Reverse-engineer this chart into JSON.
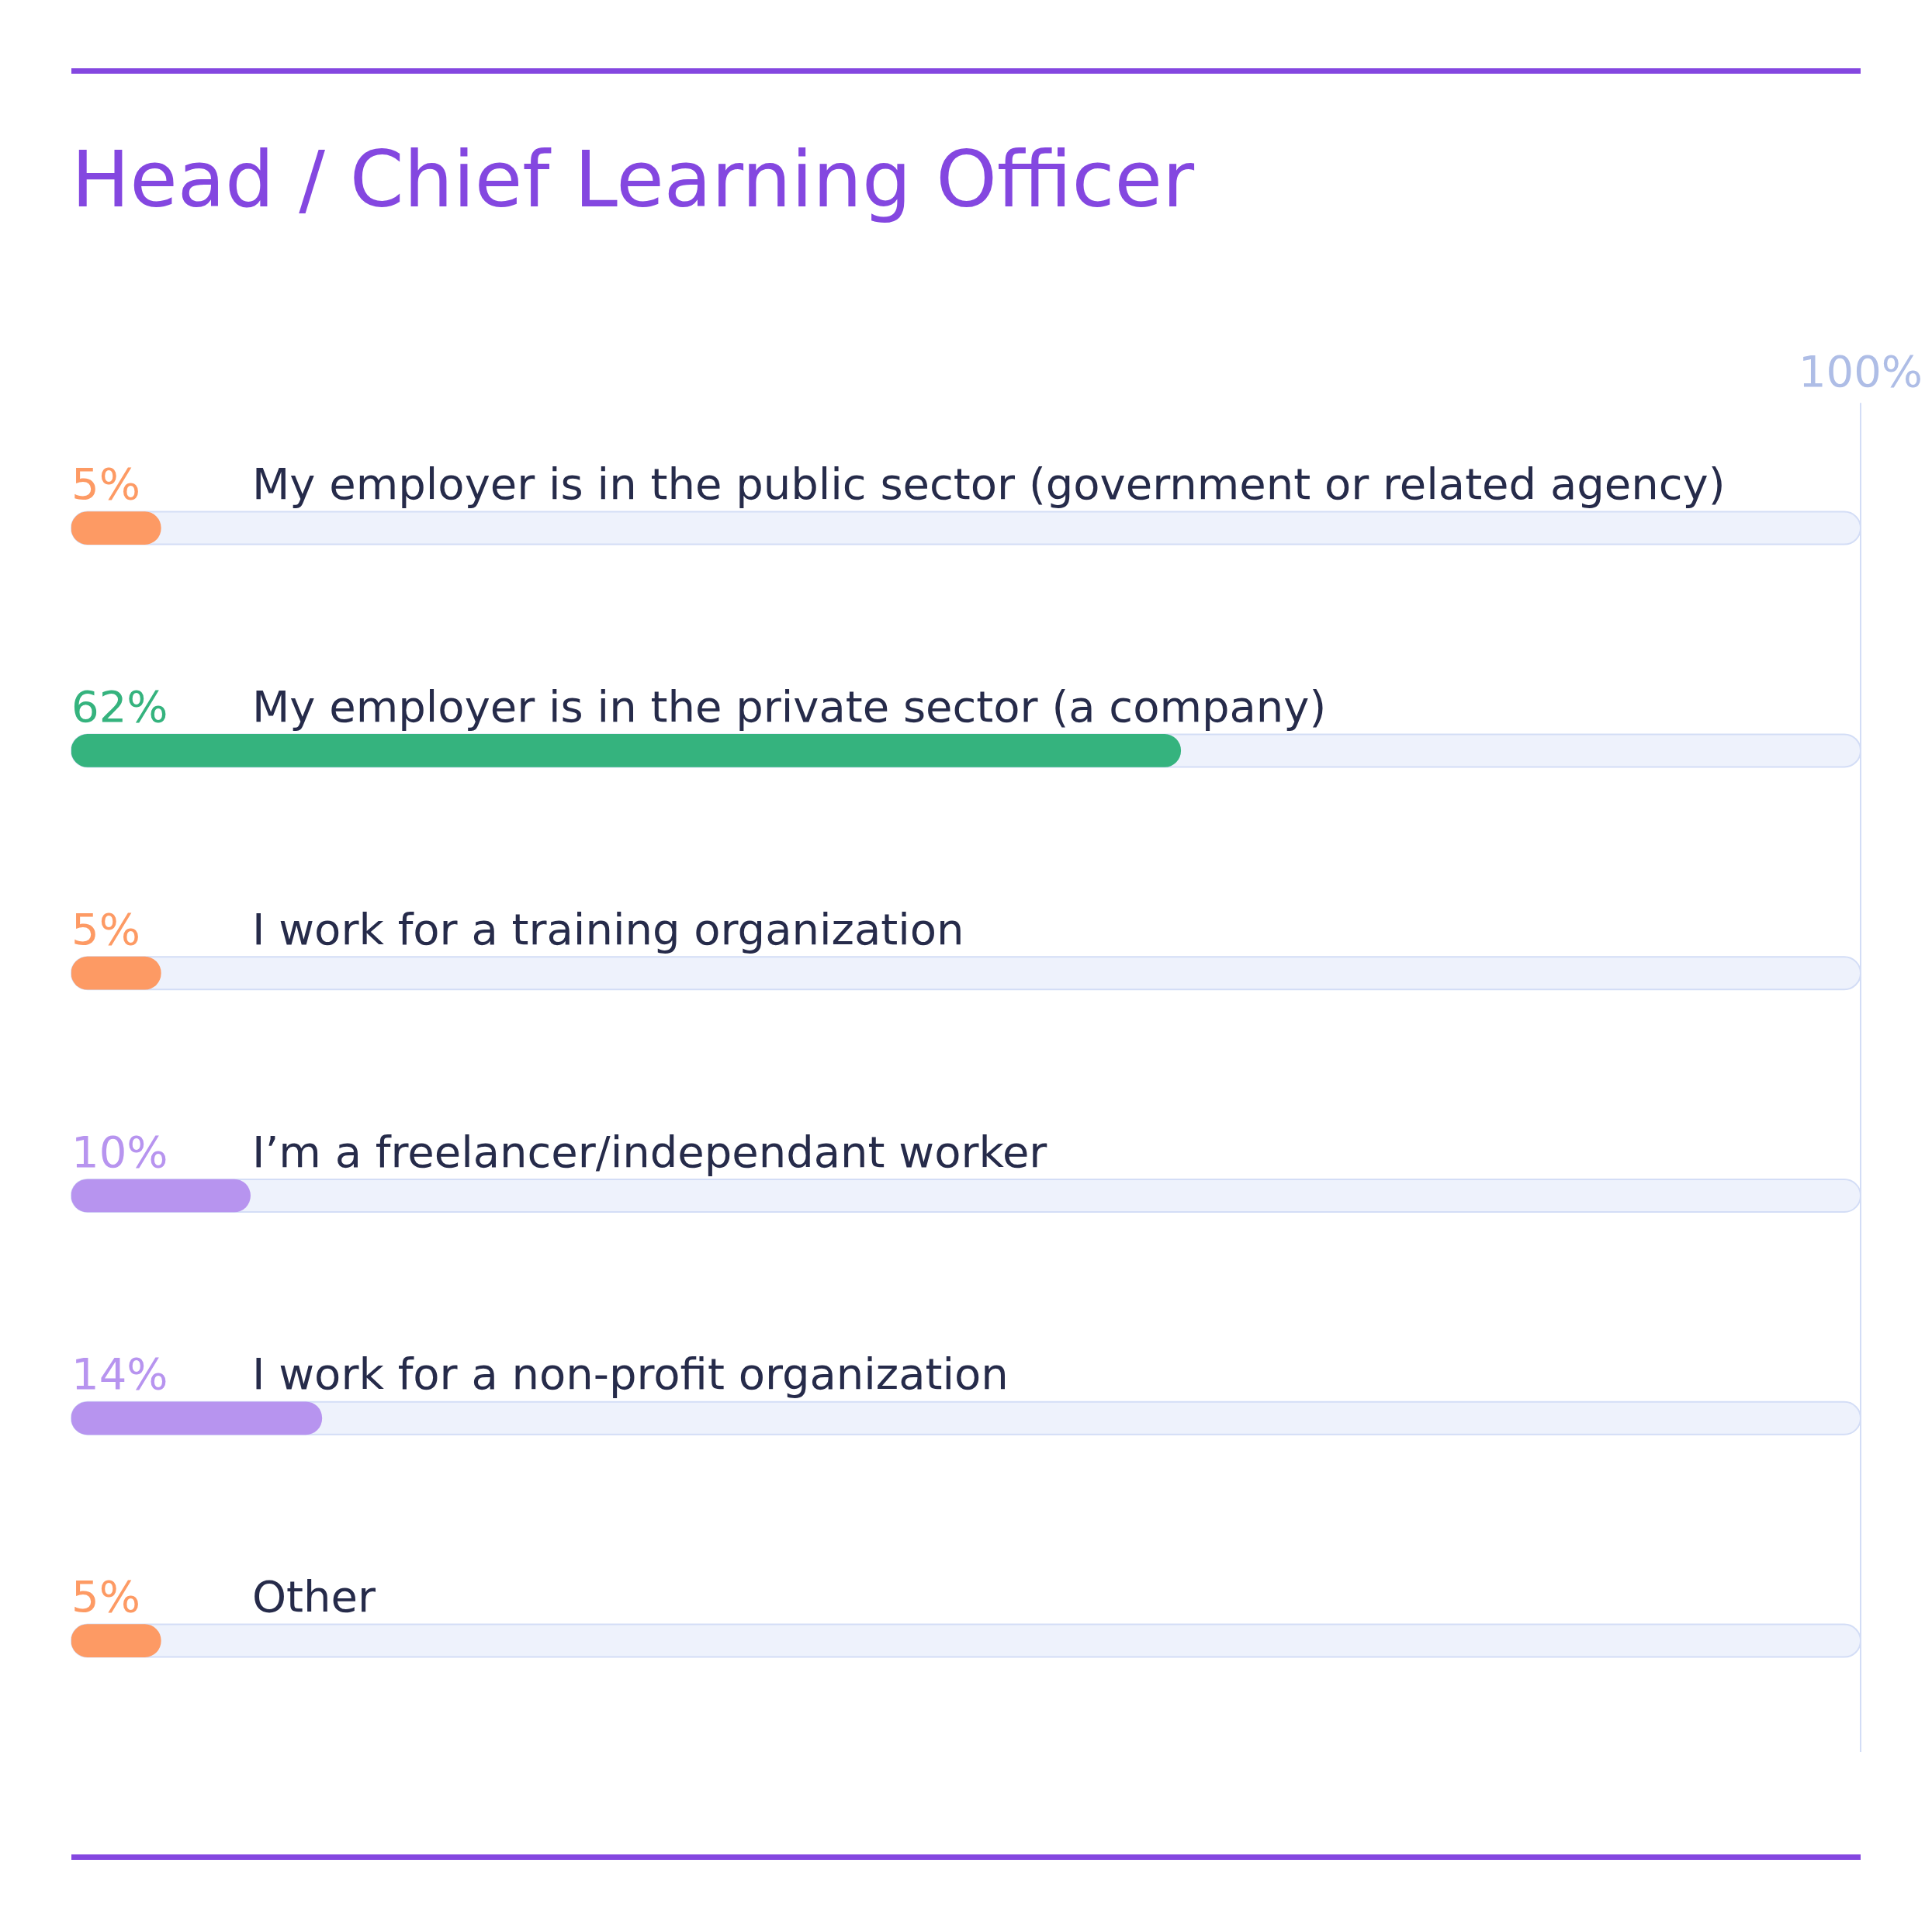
{
  "chart_data": {
    "type": "bar",
    "orientation": "horizontal",
    "title": "Head / Chief Learning Officer",
    "categories": [
      "My employer is in the public sector (government or related agency)",
      "My employer is in the private sector (a company)",
      "I work for a training organization",
      "I’m a freelancer/independant worker",
      "I work for a non-profit organization",
      "Other"
    ],
    "values": [
      5,
      62,
      5,
      10,
      14,
      5
    ],
    "colors": [
      "#fd9a64",
      "#35b37e",
      "#fd9a64",
      "#b794ef",
      "#b794ef",
      "#fd9a64"
    ],
    "value_labels": [
      "5%",
      "62%",
      "5%",
      "10%",
      "14%",
      "5%"
    ],
    "xlim": [
      0,
      100
    ],
    "xticks": [
      {
        "value": 100,
        "label": "100%"
      }
    ]
  }
}
